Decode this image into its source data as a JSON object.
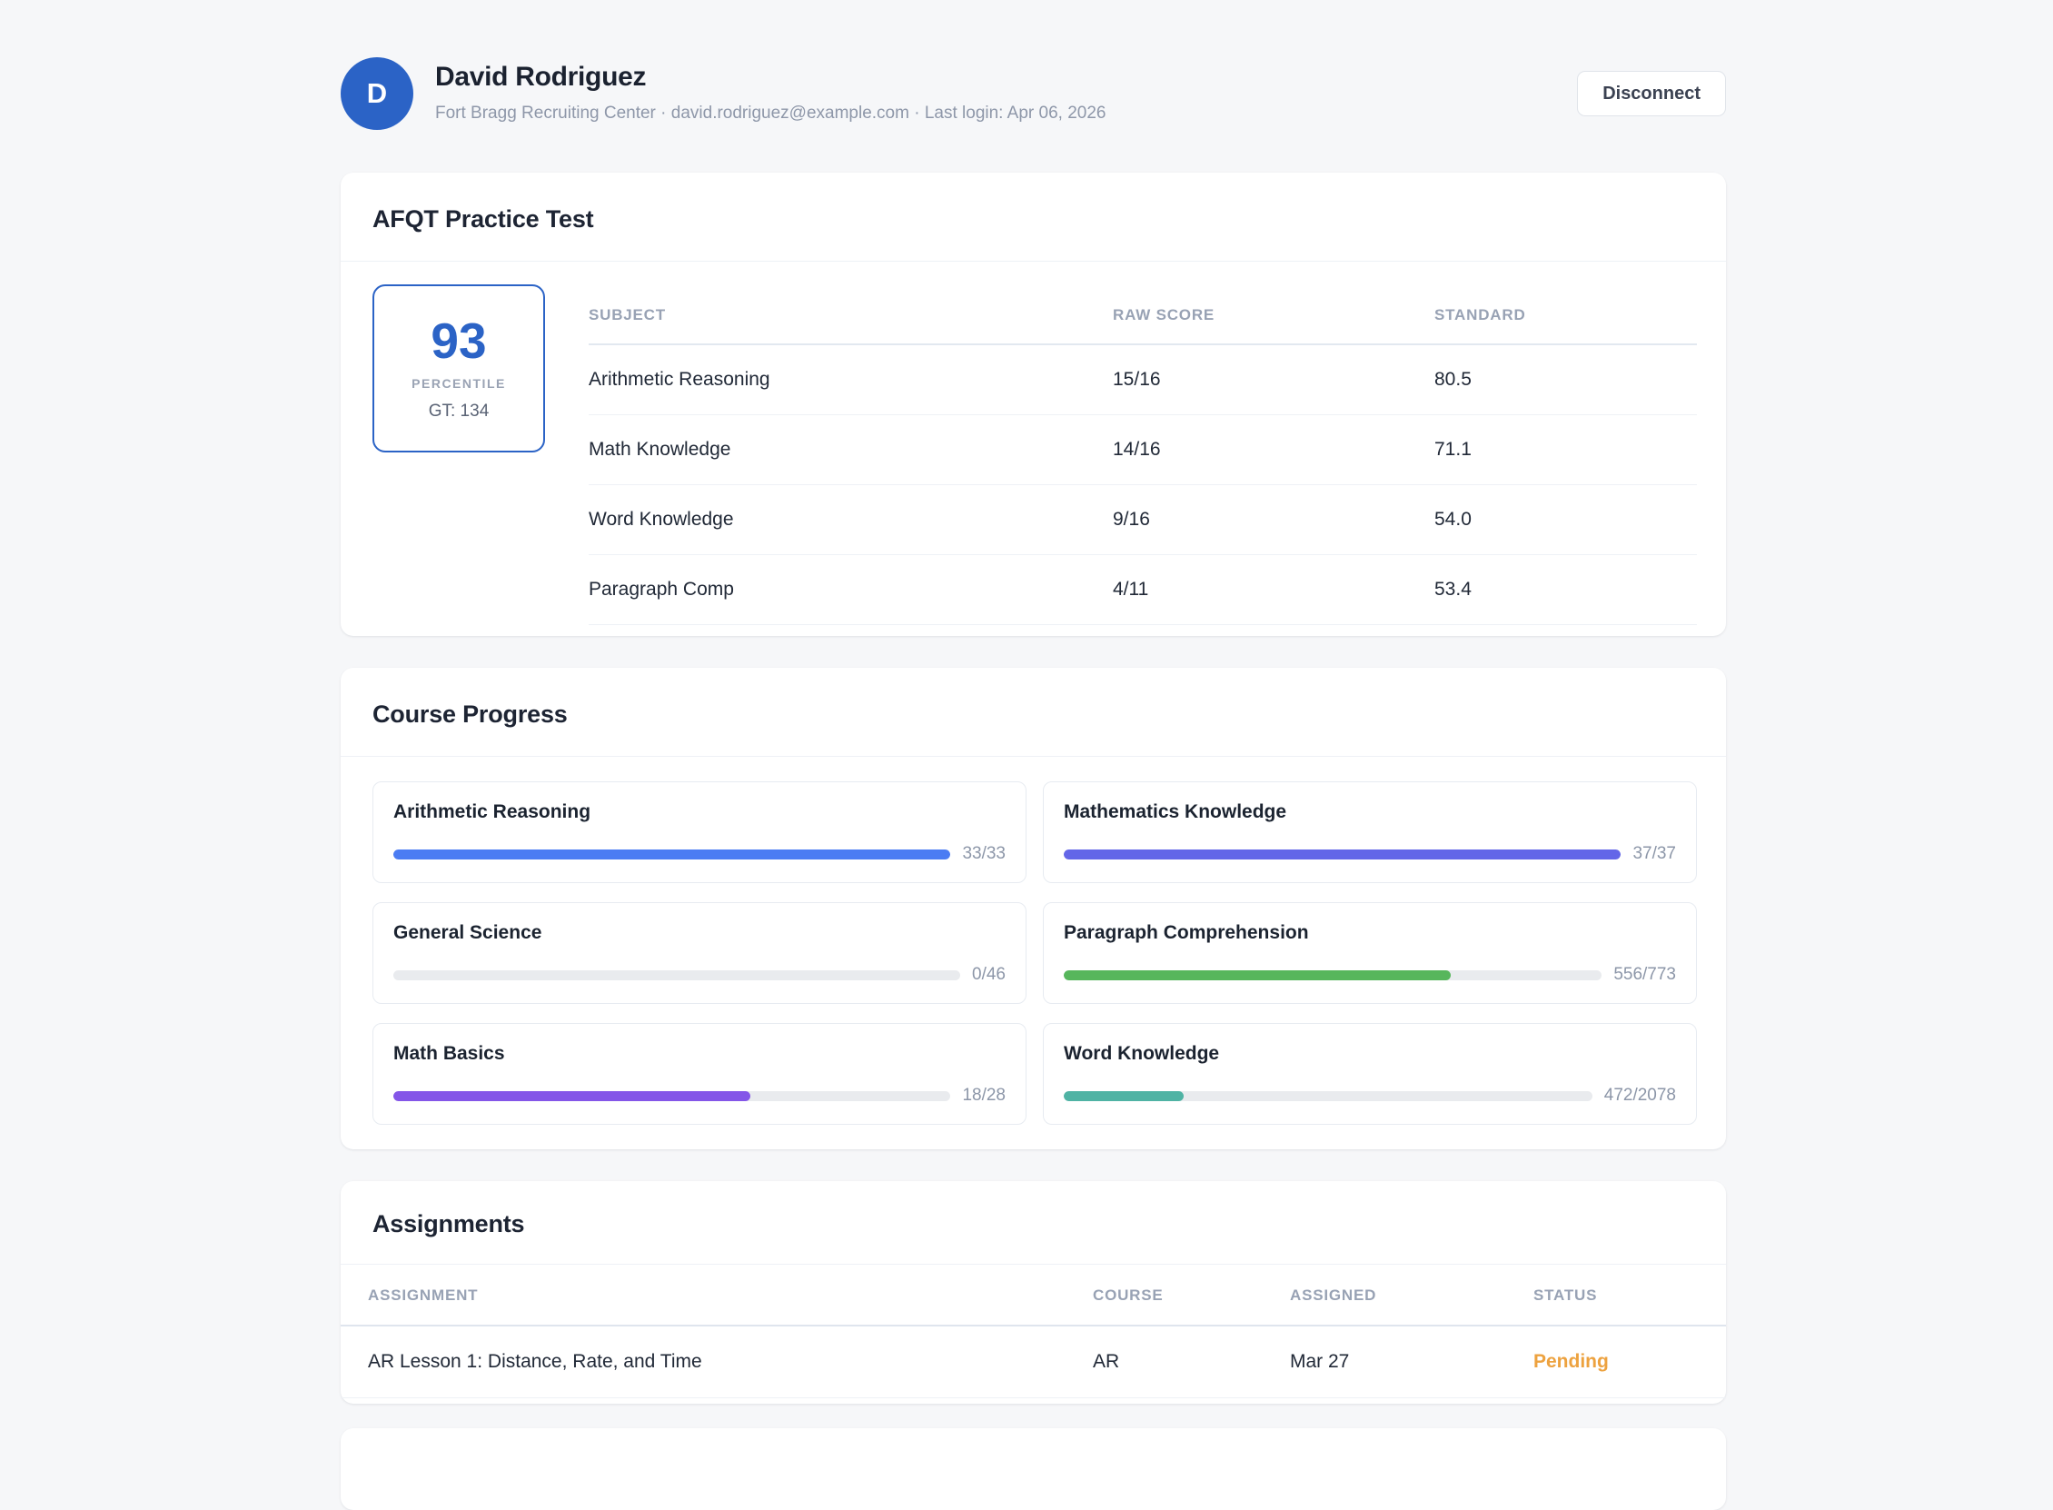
{
  "colors": {
    "accent_blue": "#2b63c6"
  },
  "header": {
    "avatar_initial": "D",
    "name": "David Rodriguez",
    "meta": "Fort Bragg Recruiting Center · david.rodriguez@example.com · Last login: Apr 06, 2026",
    "disconnect_label": "Disconnect"
  },
  "afqt": {
    "title": "AFQT Practice Test",
    "score": {
      "value": "93",
      "label": "PERCENTILE",
      "gt": "GT: 134"
    },
    "columns": [
      "SUBJECT",
      "RAW SCORE",
      "STANDARD"
    ],
    "rows": [
      {
        "subject": "Arithmetic Reasoning",
        "raw": "15/16",
        "standard": "80.5"
      },
      {
        "subject": "Math Knowledge",
        "raw": "14/16",
        "standard": "71.1"
      },
      {
        "subject": "Word Knowledge",
        "raw": "9/16",
        "standard": "54.0"
      },
      {
        "subject": "Paragraph Comp",
        "raw": "4/11",
        "standard": "53.4"
      }
    ]
  },
  "course_progress": {
    "title": "Course Progress",
    "courses": [
      {
        "name": "Arithmetic Reasoning",
        "value": "33/33",
        "pct": 100,
        "color": "#4b7cf3"
      },
      {
        "name": "Mathematics Knowledge",
        "value": "37/37",
        "pct": 100,
        "color": "#6366e8"
      },
      {
        "name": "General Science",
        "value": "0/46",
        "pct": 0,
        "color": "#4b7cf3"
      },
      {
        "name": "Paragraph Comprehension",
        "value": "556/773",
        "pct": 72,
        "color": "#57b65c"
      },
      {
        "name": "Math Basics",
        "value": "18/28",
        "pct": 64,
        "color": "#8456e8"
      },
      {
        "name": "Word Knowledge",
        "value": "472/2078",
        "pct": 22.7,
        "color": "#4fb3a4"
      }
    ]
  },
  "assignments": {
    "title": "Assignments",
    "columns": [
      "ASSIGNMENT",
      "COURSE",
      "ASSIGNED",
      "STATUS"
    ],
    "rows": [
      {
        "assignment": "AR Lesson 1: Distance, Rate, and Time",
        "course": "AR",
        "assigned": "Mar 27",
        "status": "Pending",
        "status_color": "#eda23f"
      }
    ]
  }
}
